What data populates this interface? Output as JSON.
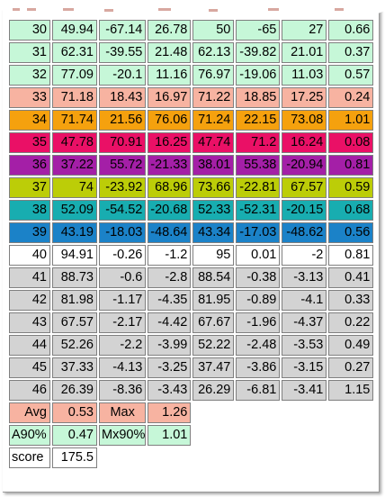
{
  "colors": {
    "mint": "#c6f7d8",
    "salmon": "#f7b3a1",
    "orange": "#f5a10e",
    "crimson": "#ea1066",
    "purple": "#a41fa7",
    "lime": "#bccd08",
    "teal": "#18adb0",
    "blue": "#1b82c8",
    "white": "#ffffff",
    "gray": "#d3d3d3"
  },
  "rows": [
    {
      "color": "mint",
      "cells": [
        "30",
        "49.94",
        "-67.14",
        "26.78",
        "50",
        "-65",
        "27",
        "0.66"
      ]
    },
    {
      "color": "mint",
      "cells": [
        "31",
        "62.31",
        "-39.55",
        "21.48",
        "62.13",
        "-39.82",
        "21.01",
        "0.37"
      ]
    },
    {
      "color": "mint",
      "cells": [
        "32",
        "77.09",
        "-20.1",
        "11.16",
        "76.97",
        "-19.06",
        "11.03",
        "0.57"
      ]
    },
    {
      "color": "salmon",
      "cells": [
        "33",
        "71.18",
        "18.43",
        "16.97",
        "71.22",
        "18.85",
        "17.25",
        "0.24"
      ]
    },
    {
      "color": "orange",
      "cells": [
        "34",
        "71.74",
        "21.56",
        "76.06",
        "71.24",
        "22.15",
        "73.08",
        "1.01"
      ]
    },
    {
      "color": "crimson",
      "cells": [
        "35",
        "47.78",
        "70.91",
        "16.25",
        "47.74",
        "71.2",
        "16.24",
        "0.08"
      ]
    },
    {
      "color": "purple",
      "cells": [
        "36",
        "37.22",
        "55.72",
        "-21.33",
        "38.01",
        "55.38",
        "-20.94",
        "0.81"
      ]
    },
    {
      "color": "lime",
      "cells": [
        "37",
        "74",
        "-23.92",
        "68.96",
        "73.66",
        "-22.81",
        "67.57",
        "0.59"
      ]
    },
    {
      "color": "teal",
      "cells": [
        "38",
        "52.09",
        "-54.52",
        "-20.68",
        "52.33",
        "-52.31",
        "-20.15",
        "0.68"
      ]
    },
    {
      "color": "blue",
      "cells": [
        "39",
        "43.19",
        "-18.03",
        "-48.64",
        "43.34",
        "-17.03",
        "-48.62",
        "0.56"
      ]
    },
    {
      "color": "white",
      "cells": [
        "40",
        "94.91",
        "-0.26",
        "-1.2",
        "95",
        "0.01",
        "-2",
        "0.81"
      ]
    },
    {
      "color": "gray",
      "cells": [
        "41",
        "88.73",
        "-0.6",
        "-2.8",
        "88.54",
        "-0.38",
        "-3.13",
        "0.41"
      ]
    },
    {
      "color": "gray",
      "cells": [
        "42",
        "81.98",
        "-1.17",
        "-4.35",
        "81.95",
        "-0.89",
        "-4.1",
        "0.33"
      ]
    },
    {
      "color": "gray",
      "cells": [
        "43",
        "67.57",
        "-2.17",
        "-4.42",
        "67.67",
        "-1.96",
        "-4.37",
        "0.22"
      ]
    },
    {
      "color": "gray",
      "cells": [
        "44",
        "52.26",
        "-2.2",
        "-3.99",
        "52.22",
        "-2.48",
        "-3.53",
        "0.49"
      ]
    },
    {
      "color": "gray",
      "cells": [
        "45",
        "37.33",
        "-4.13",
        "-3.25",
        "37.47",
        "-3.86",
        "-3.15",
        "0.27"
      ]
    },
    {
      "color": "gray",
      "cells": [
        "46",
        "26.39",
        "-8.36",
        "-3.43",
        "26.29",
        "-6.81",
        "-3.41",
        "1.15"
      ]
    }
  ],
  "summary": {
    "avg_label": "Avg",
    "avg_value": "0.53",
    "max_label": "Max",
    "max_value": "1.26",
    "a90_label": "A90%",
    "a90_value": "0.47",
    "mx90_label": "Mx90%",
    "mx90_value": "1.01",
    "score_label": "score",
    "score_value": "175.5"
  }
}
